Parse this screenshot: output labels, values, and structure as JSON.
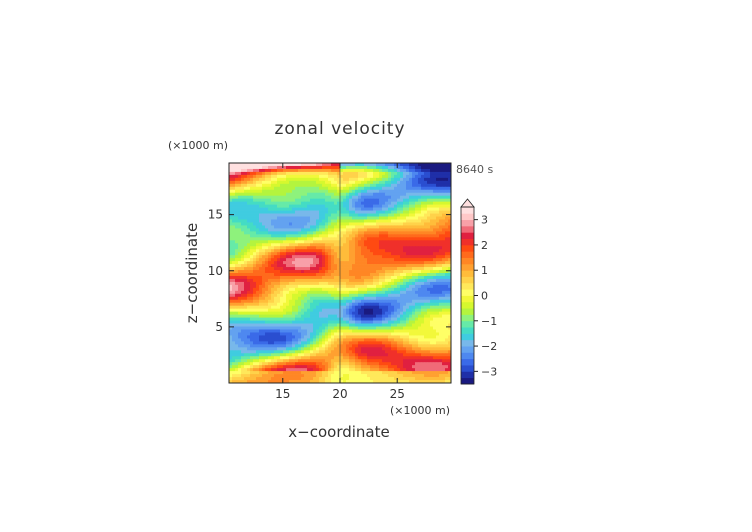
{
  "chart_data": {
    "type": "heatmap",
    "title": "zonal velocity",
    "time_label": "8640 s",
    "xlabel": "x−coordinate",
    "ylabel": "z−coordinate",
    "x_unit": "(×1000 m)",
    "y_unit": "(×1000 m)",
    "xlim": [
      10.3,
      29.7
    ],
    "ylim": [
      0,
      19.6
    ],
    "x_ticks": [
      15,
      20,
      25
    ],
    "y_ticks": [
      5,
      10,
      15
    ],
    "colorbar": {
      "ticks": [
        3,
        2,
        1,
        0,
        -1,
        -2,
        -3
      ],
      "levels": [
        -3.5,
        -3.25,
        -3.0,
        -2.75,
        -2.5,
        -2.25,
        -2.0,
        -1.75,
        -1.5,
        -1.25,
        -1.0,
        -0.75,
        -0.5,
        -0.25,
        0.0,
        0.25,
        0.5,
        0.75,
        1.0,
        1.25,
        1.5,
        1.75,
        2.0,
        2.25,
        2.5,
        2.75,
        3.0,
        3.25,
        3.5
      ],
      "colors": [
        "#1a1a80",
        "#1f2fa8",
        "#2a4ed0",
        "#3a6ae8",
        "#4e88f0",
        "#63a2f0",
        "#78b8ea",
        "#3fcce0",
        "#44dcc4",
        "#66eaa8",
        "#8ef27c",
        "#b4f43e",
        "#d6f82e",
        "#f2f83a",
        "#ffff66",
        "#ffe85a",
        "#ffd24a",
        "#ffbc3a",
        "#ffa030",
        "#ff8624",
        "#ff6a1c",
        "#ff4a12",
        "#f0302a",
        "#e02040",
        "#f06a78",
        "#f8a0a8",
        "#ffc8c8",
        "#ffe0e0"
      ]
    }
  }
}
